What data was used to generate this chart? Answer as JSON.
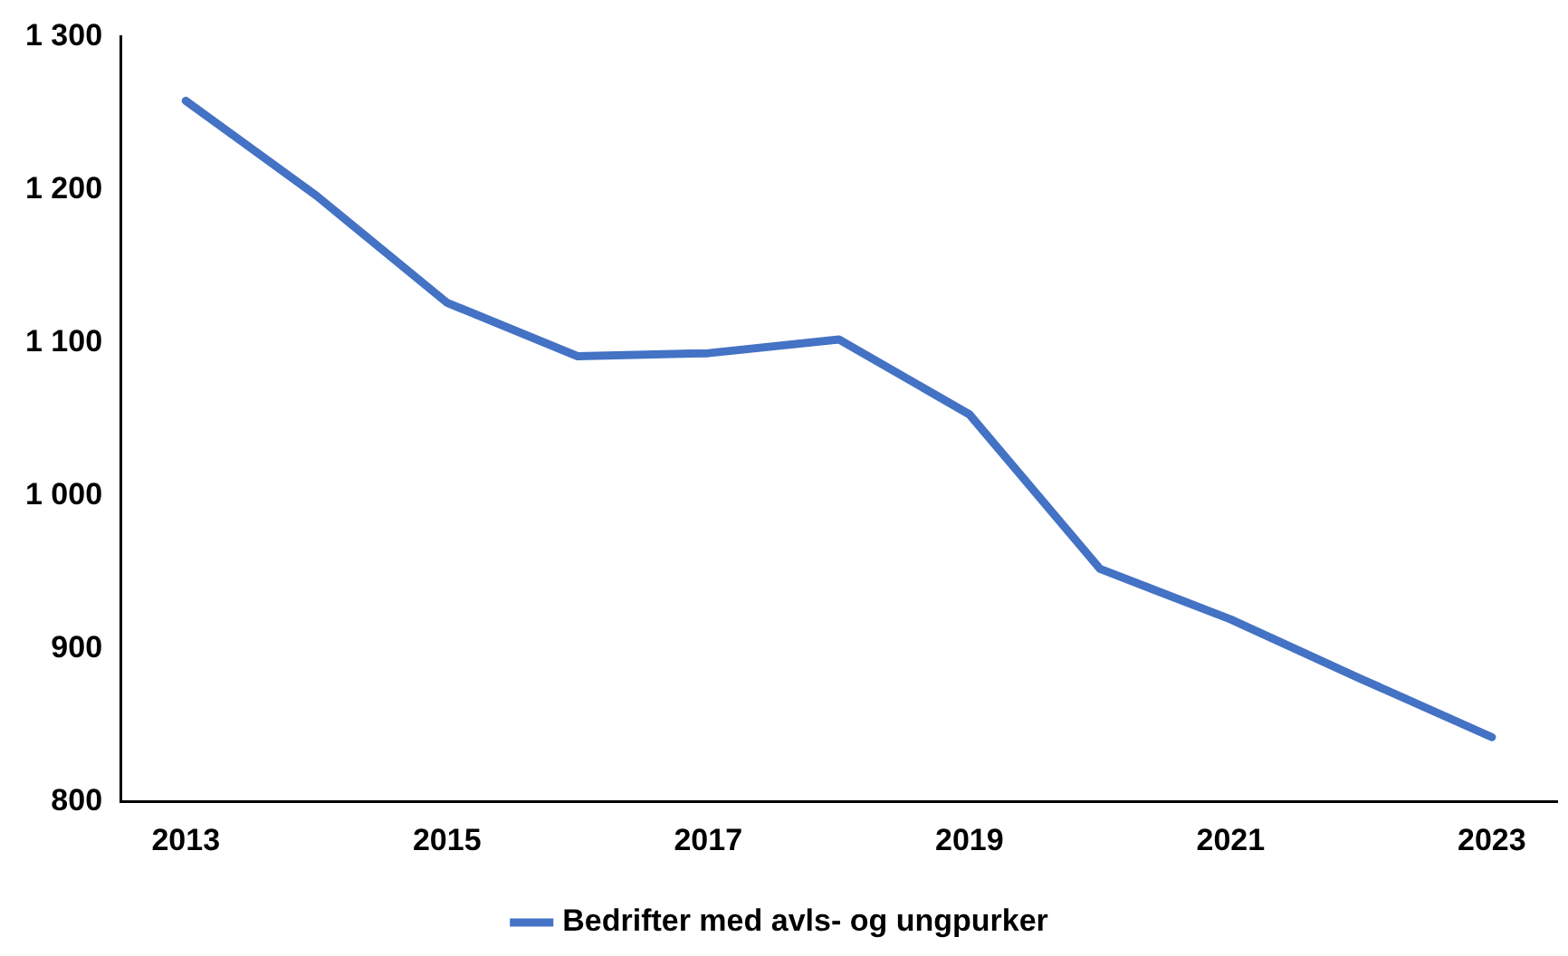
{
  "chart_data": {
    "type": "line",
    "categories": [
      "2013",
      null,
      "2015",
      null,
      "2017",
      null,
      "2019",
      null,
      "2021",
      null,
      "2023"
    ],
    "series": [
      {
        "name": "Bedrifter med avls- og ungpurker",
        "color": "#4472c4",
        "values": [
          1258,
          1196,
          1126,
          1091,
          1093,
          1102,
          1053,
          952,
          919,
          880,
          842
        ]
      }
    ],
    "ylim": [
      800,
      1300
    ],
    "yticks": [
      {
        "value": 800,
        "label": "800"
      },
      {
        "value": 900,
        "label": "900"
      },
      {
        "value": 1000,
        "label": "1 000"
      },
      {
        "value": 1100,
        "label": "1 100"
      },
      {
        "value": 1200,
        "label": "1 200"
      },
      {
        "value": 1300,
        "label": "1 300"
      }
    ],
    "grid": false,
    "legend": "bottom",
    "marker": "none",
    "line_style": "solid"
  }
}
